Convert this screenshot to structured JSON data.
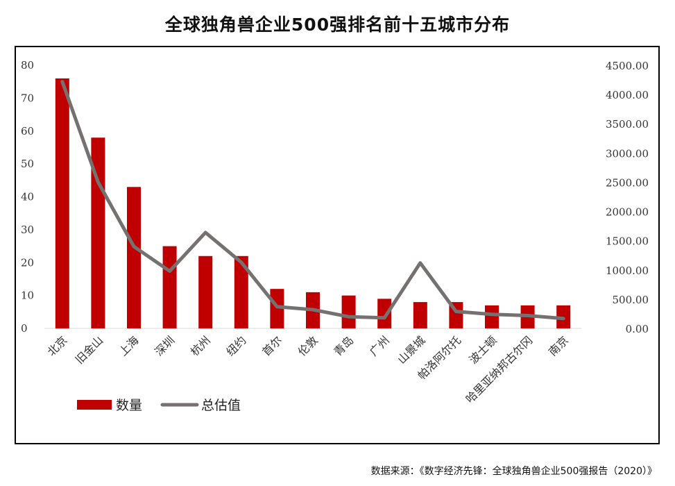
{
  "title": "全球独角兽企业500强排名前十五城市分布",
  "source": "数据来源：《数字经济先锋：全球独角兽企业500强报告（2020）》",
  "colors": {
    "bar": "#c00000",
    "line": "#767171",
    "axis": "#d9d9d9"
  },
  "chart_data": {
    "type": "bar+line",
    "categories": [
      "北京",
      "旧金山",
      "上海",
      "深圳",
      "杭州",
      "纽约",
      "首尔",
      "伦敦",
      "青岛",
      "广州",
      "山景城",
      "帕洛阿尔托",
      "波士顿",
      "哈里亚纳邦古尔冈",
      "南京"
    ],
    "series": [
      {
        "name": "数量",
        "type": "bar",
        "axis": "left",
        "values": [
          76,
          58,
          43,
          25,
          22,
          22,
          12,
          11,
          10,
          9,
          8,
          8,
          7,
          7,
          7
        ]
      },
      {
        "name": "总估值",
        "type": "line",
        "axis": "right",
        "values": [
          4220,
          2500,
          1400,
          980,
          1640,
          1130,
          370,
          320,
          200,
          180,
          1120,
          290,
          240,
          220,
          170
        ]
      }
    ],
    "y_left": {
      "min": 0,
      "max": 80,
      "ticks": [
        "0",
        "10",
        "20",
        "30",
        "40",
        "50",
        "60",
        "70",
        "80"
      ]
    },
    "y_right": {
      "min": 0,
      "max": 4500,
      "ticks": [
        "0.00",
        "500.00",
        "1000.00",
        "1500.00",
        "2000.00",
        "2500.00",
        "3000.00",
        "3500.00",
        "4000.00",
        "4500.00"
      ]
    },
    "legend": {
      "position": "bottom-left",
      "items": [
        "数量",
        "总估值"
      ]
    },
    "grid": false
  }
}
